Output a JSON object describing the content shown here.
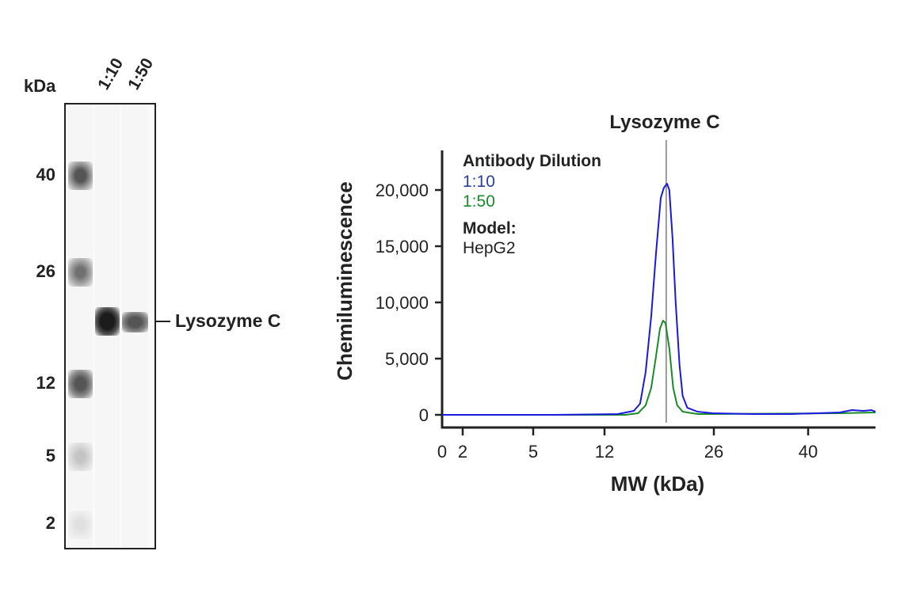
{
  "gel": {
    "unit_label": "kDa",
    "lane_labels": [
      "1:10",
      "1:50"
    ],
    "mw_markers": [
      "40",
      "26",
      "12",
      "5",
      "2"
    ],
    "band_label": "Lysozyme C"
  },
  "chart_data": {
    "type": "line",
    "title": "Lysozyme C",
    "xlabel": "MW (kDa)",
    "ylabel": "Chemiluminescence",
    "x_ticks": [
      0,
      2,
      5,
      12,
      26,
      40
    ],
    "x_tick_labels": [
      "0",
      "2",
      "5",
      "12",
      "26",
      "40"
    ],
    "y_ticks": [
      0,
      5000,
      10000,
      15000,
      20000
    ],
    "y_tick_labels": [
      "0",
      "5,000",
      "10,000",
      "15,000",
      "20,000"
    ],
    "xlim": [
      0,
      50
    ],
    "ylim": [
      0,
      23500
    ],
    "x_scale": "nonlinear (ticks unevenly spaced)",
    "grid": false,
    "marker_line_kda": 19.9,
    "legend": {
      "title": "Antibody Dilution",
      "model_label": "Model:",
      "model_value": "HepG2",
      "placement": "top-left"
    },
    "series": [
      {
        "name": "1:10",
        "color": "#1a1adc",
        "x": [
          0,
          7.1,
          13.7,
          15.75,
          16.56,
          17.27,
          17.98,
          18.59,
          19.2,
          19.6,
          20.0,
          20.3,
          20.7,
          21.1,
          21.6,
          22.0,
          22.6,
          23.9,
          25.9,
          31.8,
          37.6,
          44.7,
          46.5,
          48.2,
          49.4,
          50
        ],
        "y": [
          0,
          0,
          70,
          350,
          990,
          3800,
          8730,
          14370,
          19300,
          20200,
          20560,
          20000,
          15770,
          10140,
          4500,
          1690,
          630,
          280,
          140,
          70,
          70,
          210,
          420,
          350,
          420,
          280
        ]
      },
      {
        "name": "1:50",
        "color": "#1a8a2a",
        "x": [
          0,
          14.7,
          16.3,
          17.27,
          17.98,
          18.59,
          19.1,
          19.5,
          19.8,
          20.3,
          20.8,
          21.3,
          22.0,
          23.9,
          44.7,
          50
        ],
        "y": [
          0,
          0,
          140,
          850,
          2390,
          5210,
          7680,
          8380,
          8170,
          5920,
          2390,
          850,
          280,
          70,
          140,
          210
        ]
      }
    ]
  }
}
